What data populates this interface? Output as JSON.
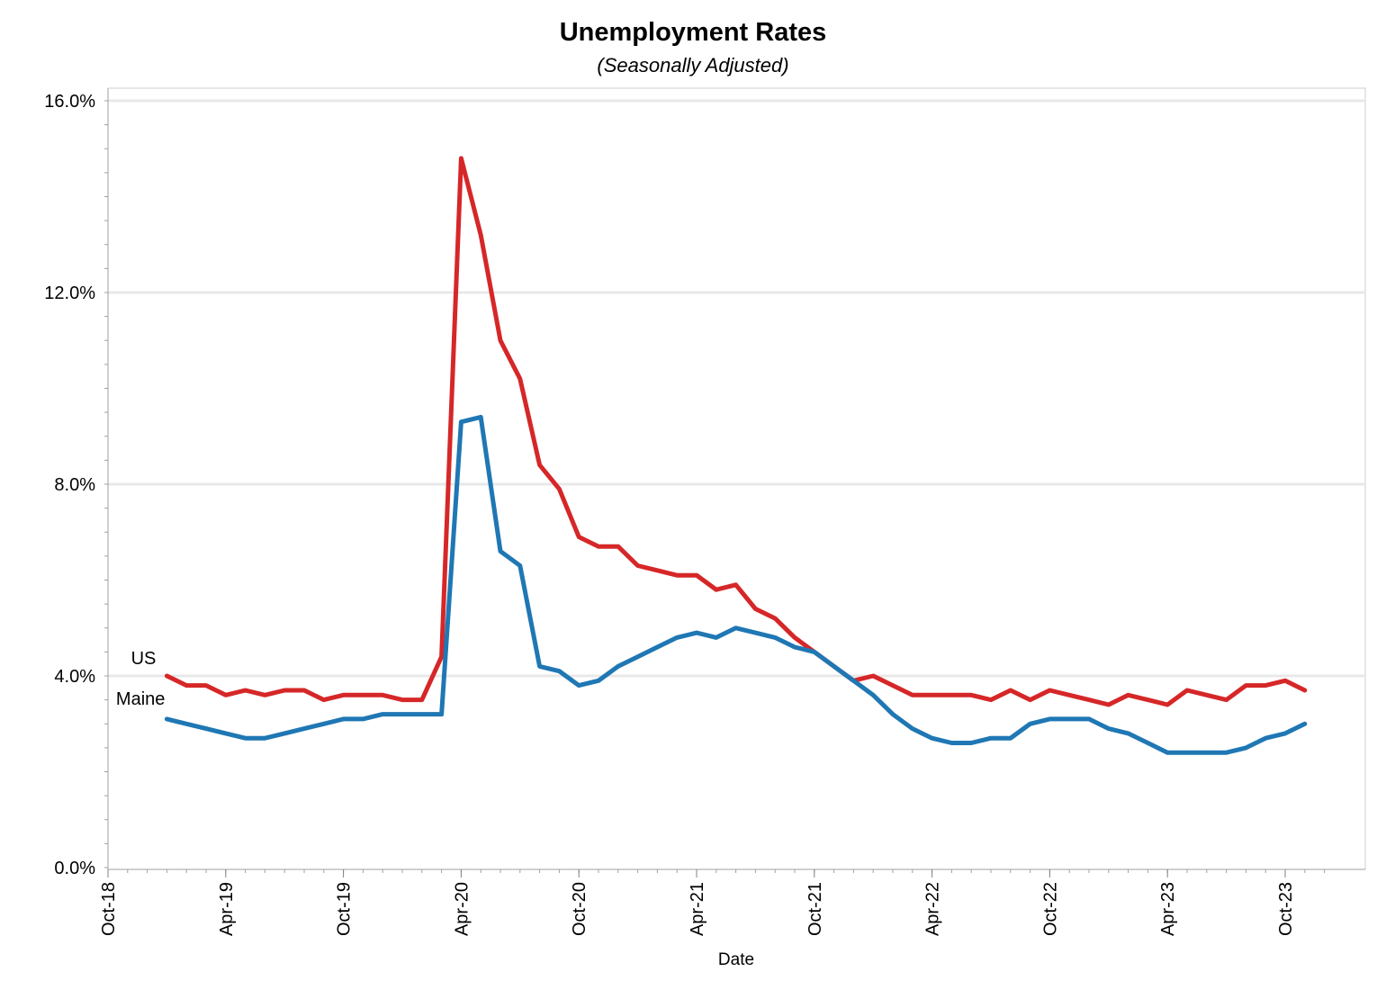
{
  "chart_data": {
    "type": "line",
    "title": "Unemployment Rates",
    "subtitle": "(Seasonally Adjusted)",
    "xlabel": "Date",
    "ylabel": "",
    "ylim": [
      0,
      16
    ],
    "xlim": [
      "2018-10",
      "2023-12"
    ],
    "grid": "horizontal",
    "legend": "inline-left",
    "y_ticks": [
      "0.0%",
      "4.0%",
      "8.0%",
      "12.0%",
      "16.0%"
    ],
    "y_tick_values": [
      0,
      4,
      8,
      12,
      16
    ],
    "x_ticks": [
      "Oct-18",
      "Apr-19",
      "Oct-19",
      "Apr-20",
      "Oct-20",
      "Apr-21",
      "Oct-21",
      "Apr-22",
      "Oct-22",
      "Apr-23",
      "Oct-23"
    ],
    "x_tick_values": [
      "2018-10",
      "2019-04",
      "2019-10",
      "2020-04",
      "2020-10",
      "2021-04",
      "2021-10",
      "2022-04",
      "2022-10",
      "2023-04",
      "2023-10"
    ],
    "x": [
      "2019-01",
      "2019-02",
      "2019-03",
      "2019-04",
      "2019-05",
      "2019-06",
      "2019-07",
      "2019-08",
      "2019-09",
      "2019-10",
      "2019-11",
      "2019-12",
      "2020-01",
      "2020-02",
      "2020-03",
      "2020-04",
      "2020-05",
      "2020-06",
      "2020-07",
      "2020-08",
      "2020-09",
      "2020-10",
      "2020-11",
      "2020-12",
      "2021-01",
      "2021-02",
      "2021-03",
      "2021-04",
      "2021-05",
      "2021-06",
      "2021-07",
      "2021-08",
      "2021-09",
      "2021-10",
      "2021-11",
      "2021-12",
      "2022-01",
      "2022-02",
      "2022-03",
      "2022-04",
      "2022-05",
      "2022-06",
      "2022-07",
      "2022-08",
      "2022-09",
      "2022-10",
      "2022-11",
      "2022-12",
      "2023-01",
      "2023-02",
      "2023-03",
      "2023-04",
      "2023-05",
      "2023-06",
      "2023-07",
      "2023-08",
      "2023-09",
      "2023-10",
      "2023-11"
    ],
    "series": [
      {
        "name": "US",
        "color": "#d62728",
        "values": [
          4.0,
          3.8,
          3.8,
          3.6,
          3.7,
          3.6,
          3.7,
          3.7,
          3.5,
          3.6,
          3.6,
          3.6,
          3.5,
          3.5,
          4.4,
          14.8,
          13.2,
          11.0,
          10.2,
          8.4,
          7.9,
          6.9,
          6.7,
          6.7,
          6.3,
          6.2,
          6.1,
          6.1,
          5.8,
          5.9,
          5.4,
          5.2,
          4.8,
          4.5,
          4.2,
          3.9,
          4.0,
          3.8,
          3.6,
          3.6,
          3.6,
          3.6,
          3.5,
          3.7,
          3.5,
          3.7,
          3.6,
          3.5,
          3.4,
          3.6,
          3.5,
          3.4,
          3.7,
          3.6,
          3.5,
          3.8,
          3.8,
          3.9,
          3.7
        ]
      },
      {
        "name": "Maine",
        "color": "#1f77b4",
        "values": [
          3.1,
          3.0,
          2.9,
          2.8,
          2.7,
          2.7,
          2.8,
          2.9,
          3.0,
          3.1,
          3.1,
          3.2,
          3.2,
          3.2,
          3.2,
          9.3,
          9.4,
          6.6,
          6.3,
          4.2,
          4.1,
          3.8,
          3.9,
          4.2,
          4.4,
          4.6,
          4.8,
          4.9,
          4.8,
          5.0,
          4.9,
          4.8,
          4.6,
          4.5,
          4.2,
          3.9,
          3.6,
          3.2,
          2.9,
          2.7,
          2.6,
          2.6,
          2.7,
          2.7,
          3.0,
          3.1,
          3.1,
          3.1,
          2.9,
          2.8,
          2.6,
          2.4,
          2.4,
          2.4,
          2.4,
          2.5,
          2.7,
          2.8,
          3.0
        ]
      }
    ]
  }
}
